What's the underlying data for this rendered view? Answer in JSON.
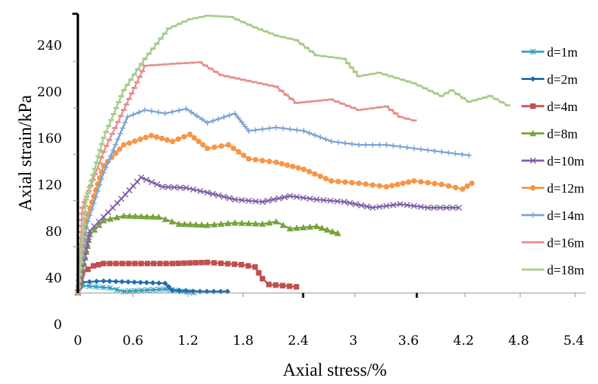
{
  "chart_data": {
    "type": "line",
    "xlabel": "Axial stress/%",
    "ylabel": "Axial strain/kPa",
    "xlim": [
      0,
      5.4
    ],
    "ylim": [
      0,
      270
    ],
    "x_ticks": [
      "0",
      "0.6",
      "1.2",
      "1.8",
      "2.4",
      "3",
      "3.6",
      "4.2",
      "4.8",
      "5.4"
    ],
    "y_ticks": [
      "0",
      "40",
      "80",
      "120",
      "160",
      "200",
      "240"
    ],
    "grid": false,
    "legend_position": "right",
    "series": [
      {
        "name": "d=1m",
        "color": "#31a0c0",
        "marker": "asterisk",
        "points": [
          [
            0,
            27
          ],
          [
            0.05,
            33
          ],
          [
            0.35,
            31
          ],
          [
            0.5,
            28
          ],
          [
            0.95,
            30
          ],
          [
            1.26,
            27
          ]
        ]
      },
      {
        "name": "d=2m",
        "color": "#1f6cb0",
        "marker": "diamond",
        "points": [
          [
            0,
            27
          ],
          [
            0.05,
            36
          ],
          [
            0.28,
            37
          ],
          [
            0.95,
            35
          ],
          [
            1.03,
            29
          ],
          [
            1.33,
            28
          ],
          [
            1.63,
            28
          ]
        ]
      },
      {
        "name": "d=4m",
        "color": "#c0504d",
        "marker": "square",
        "points": [
          [
            0,
            27
          ],
          [
            0.05,
            44
          ],
          [
            0.17,
            50
          ],
          [
            0.28,
            52
          ],
          [
            1.03,
            52
          ],
          [
            1.41,
            53
          ],
          [
            1.78,
            51
          ],
          [
            1.93,
            49
          ],
          [
            2.01,
            39
          ],
          [
            2.08,
            34
          ],
          [
            2.38,
            32
          ]
        ]
      },
      {
        "name": "d=8m",
        "color": "#77a33b",
        "marker": "triangle",
        "points": [
          [
            0,
            27
          ],
          [
            0.13,
            77
          ],
          [
            0.28,
            89
          ],
          [
            0.5,
            93
          ],
          [
            0.88,
            92
          ],
          [
            1.1,
            86
          ],
          [
            1.41,
            85
          ],
          [
            1.71,
            87
          ],
          [
            2.01,
            86
          ],
          [
            2.16,
            88
          ],
          [
            2.31,
            82
          ],
          [
            2.6,
            84
          ],
          [
            2.83,
            78
          ]
        ]
      },
      {
        "name": "d=10m",
        "color": "#7f5fa8",
        "marker": "x",
        "points": [
          [
            0,
            27
          ],
          [
            0.13,
            80
          ],
          [
            0.43,
            104
          ],
          [
            0.69,
            126
          ],
          [
            0.92,
            118
          ],
          [
            1.18,
            117
          ],
          [
            1.41,
            113
          ],
          [
            1.71,
            107
          ],
          [
            2.01,
            105
          ],
          [
            2.31,
            110
          ],
          [
            2.6,
            107
          ],
          [
            2.9,
            105
          ],
          [
            3.21,
            100
          ],
          [
            3.51,
            103
          ],
          [
            3.81,
            100
          ],
          [
            4.15,
            100
          ]
        ]
      },
      {
        "name": "d=12m",
        "color": "#f79646",
        "marker": "circle",
        "points": [
          [
            0,
            27
          ],
          [
            0.09,
            89
          ],
          [
            0.28,
            136
          ],
          [
            0.5,
            154
          ],
          [
            0.8,
            162
          ],
          [
            1.03,
            157
          ],
          [
            1.22,
            163
          ],
          [
            1.41,
            151
          ],
          [
            1.64,
            154
          ],
          [
            1.86,
            142
          ],
          [
            2.16,
            139
          ],
          [
            2.46,
            133
          ],
          [
            2.76,
            123
          ],
          [
            3.06,
            121
          ],
          [
            3.36,
            118
          ],
          [
            3.66,
            123
          ],
          [
            3.96,
            120
          ],
          [
            4.19,
            116
          ],
          [
            4.29,
            121
          ]
        ]
      },
      {
        "name": "d=14m",
        "color": "#7ba3d4",
        "marker": "plus",
        "points": [
          [
            0,
            27
          ],
          [
            0.09,
            83
          ],
          [
            0.28,
            130
          ],
          [
            0.54,
            178
          ],
          [
            0.73,
            184
          ],
          [
            0.95,
            181
          ],
          [
            1.18,
            185
          ],
          [
            1.41,
            173
          ],
          [
            1.71,
            181
          ],
          [
            1.86,
            166
          ],
          [
            2.16,
            169
          ],
          [
            2.46,
            166
          ],
          [
            2.76,
            157
          ],
          [
            3.06,
            154
          ],
          [
            3.36,
            154
          ],
          [
            3.66,
            151
          ],
          [
            3.96,
            148
          ],
          [
            4.26,
            145
          ]
        ]
      },
      {
        "name": "d=16m",
        "color": "#e6908f",
        "marker": "dash",
        "points": [
          [
            0,
            27
          ],
          [
            0.05,
            100
          ],
          [
            0.28,
            148
          ],
          [
            0.5,
            184
          ],
          [
            0.73,
            222
          ],
          [
            1.1,
            224
          ],
          [
            1.33,
            225
          ],
          [
            1.56,
            214
          ],
          [
            1.86,
            209
          ],
          [
            2.16,
            204
          ],
          [
            2.38,
            190
          ],
          [
            2.76,
            193
          ],
          [
            3.06,
            184
          ],
          [
            3.36,
            187
          ],
          [
            3.51,
            178
          ],
          [
            3.66,
            175
          ]
        ]
      },
      {
        "name": "d=18m",
        "color": "#a9cc8c",
        "marker": "dash",
        "points": [
          [
            0,
            27
          ],
          [
            0.09,
            107
          ],
          [
            0.28,
            160
          ],
          [
            0.5,
            201
          ],
          [
            0.73,
            228
          ],
          [
            0.99,
            254
          ],
          [
            1.22,
            262
          ],
          [
            1.41,
            265
          ],
          [
            1.67,
            264
          ],
          [
            1.93,
            255
          ],
          [
            2.16,
            248
          ],
          [
            2.38,
            244
          ],
          [
            2.6,
            231
          ],
          [
            2.9,
            228
          ],
          [
            3.06,
            213
          ],
          [
            3.28,
            216
          ],
          [
            3.66,
            207
          ],
          [
            3.96,
            196
          ],
          [
            4.07,
            201
          ],
          [
            4.26,
            191
          ],
          [
            4.49,
            196
          ],
          [
            4.68,
            188
          ]
        ]
      }
    ]
  }
}
